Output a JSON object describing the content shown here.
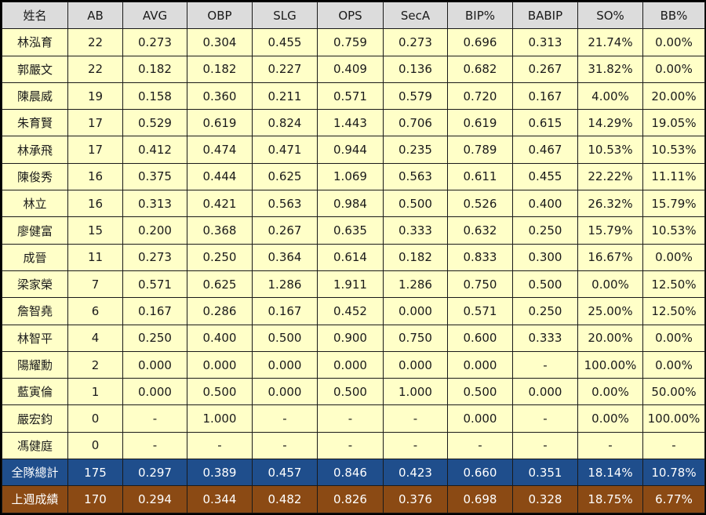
{
  "table": {
    "headers": [
      "姓名",
      "AB",
      "AVG",
      "OBP",
      "SLG",
      "OPS",
      "SecA",
      "BIP%",
      "BABIP",
      "SO%",
      "BB%"
    ],
    "rows": [
      [
        "林泓育",
        "22",
        "0.273",
        "0.304",
        "0.455",
        "0.759",
        "0.273",
        "0.696",
        "0.313",
        "21.74%",
        "0.00%"
      ],
      [
        "郭嚴文",
        "22",
        "0.182",
        "0.182",
        "0.227",
        "0.409",
        "0.136",
        "0.682",
        "0.267",
        "31.82%",
        "0.00%"
      ],
      [
        "陳晨威",
        "19",
        "0.158",
        "0.360",
        "0.211",
        "0.571",
        "0.579",
        "0.720",
        "0.167",
        "4.00%",
        "20.00%"
      ],
      [
        "朱育賢",
        "17",
        "0.529",
        "0.619",
        "0.824",
        "1.443",
        "0.706",
        "0.619",
        "0.615",
        "14.29%",
        "19.05%"
      ],
      [
        "林承飛",
        "17",
        "0.412",
        "0.474",
        "0.471",
        "0.944",
        "0.235",
        "0.789",
        "0.467",
        "10.53%",
        "10.53%"
      ],
      [
        "陳俊秀",
        "16",
        "0.375",
        "0.444",
        "0.625",
        "1.069",
        "0.563",
        "0.611",
        "0.455",
        "22.22%",
        "11.11%"
      ],
      [
        "林立",
        "16",
        "0.313",
        "0.421",
        "0.563",
        "0.984",
        "0.500",
        "0.526",
        "0.400",
        "26.32%",
        "15.79%"
      ],
      [
        "廖健富",
        "15",
        "0.200",
        "0.368",
        "0.267",
        "0.635",
        "0.333",
        "0.632",
        "0.250",
        "15.79%",
        "10.53%"
      ],
      [
        "成晉",
        "11",
        "0.273",
        "0.250",
        "0.364",
        "0.614",
        "0.182",
        "0.833",
        "0.300",
        "16.67%",
        "0.00%"
      ],
      [
        "梁家榮",
        "7",
        "0.571",
        "0.625",
        "1.286",
        "1.911",
        "1.286",
        "0.750",
        "0.500",
        "0.00%",
        "12.50%"
      ],
      [
        "詹智堯",
        "6",
        "0.167",
        "0.286",
        "0.167",
        "0.452",
        "0.000",
        "0.571",
        "0.250",
        "25.00%",
        "12.50%"
      ],
      [
        "林智平",
        "4",
        "0.250",
        "0.400",
        "0.500",
        "0.900",
        "0.750",
        "0.600",
        "0.333",
        "20.00%",
        "0.00%"
      ],
      [
        "陽耀勳",
        "2",
        "0.000",
        "0.000",
        "0.000",
        "0.000",
        "0.000",
        "0.000",
        "-",
        "100.00%",
        "0.00%"
      ],
      [
        "藍寅倫",
        "1",
        "0.000",
        "0.500",
        "0.000",
        "0.500",
        "1.000",
        "0.500",
        "0.000",
        "0.00%",
        "50.00%"
      ],
      [
        "嚴宏鈞",
        "0",
        "-",
        "1.000",
        "-",
        "-",
        "-",
        "0.000",
        "-",
        "0.00%",
        "100.00%"
      ],
      [
        "馮健庭",
        "0",
        "-",
        "-",
        "-",
        "-",
        "-",
        "-",
        "-",
        "-",
        "-"
      ]
    ],
    "team_total": [
      "全隊總計",
      "175",
      "0.297",
      "0.389",
      "0.457",
      "0.846",
      "0.423",
      "0.660",
      "0.351",
      "18.14%",
      "10.78%"
    ],
    "last_week": [
      "上週成績",
      "170",
      "0.294",
      "0.344",
      "0.482",
      "0.826",
      "0.376",
      "0.698",
      "0.328",
      "18.75%",
      "6.77%"
    ]
  },
  "colors": {
    "header_bg": "#dcdcdc",
    "row_bg": "#ffffc8",
    "team_bg": "#1f4e8c",
    "lastweek_bg": "#8b4a14"
  }
}
